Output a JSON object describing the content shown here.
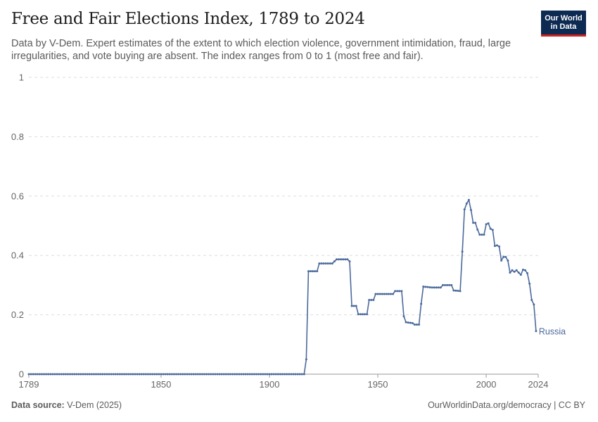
{
  "header": {
    "title": "Free and Fair Elections Index, 1789 to 2024",
    "subtitle": "Data by V-Dem. Expert estimates of the extent to which election violence, government intimidation, fraud, large irregularities, and vote buying are absent. The index ranges from 0 to 1 (most free and fair).",
    "logo_line1": "Our World",
    "logo_line2": "in Data"
  },
  "footer": {
    "source_label": "Data source:",
    "source_value": "V-Dem (2025)",
    "link_text": "OurWorldinData.org/democracy | CC BY"
  },
  "colors": {
    "series": "#4c6a9c",
    "grid": "#dddddd",
    "axis": "#999999",
    "tick_text": "#666666",
    "logo_bg": "#0d2a52",
    "logo_accent": "#ce261e"
  },
  "chart_data": {
    "type": "line",
    "xlabel": "",
    "ylabel": "",
    "xlim": [
      1789,
      2024
    ],
    "ylim": [
      0,
      1
    ],
    "x_ticks": [
      "1789",
      "1850",
      "1900",
      "1950",
      "2000",
      "2024"
    ],
    "y_ticks": [
      "0",
      "0.2",
      "0.4",
      "0.6",
      "0.8",
      "1"
    ],
    "grid": true,
    "series": [
      {
        "name": "Russia",
        "points": [
          [
            1789,
            0
          ],
          [
            1916,
            0
          ],
          [
            1917,
            0.05
          ],
          [
            1918,
            0.347
          ],
          [
            1922,
            0.347
          ],
          [
            1923,
            0.373
          ],
          [
            1929,
            0.373
          ],
          [
            1930,
            0.38
          ],
          [
            1931,
            0.387
          ],
          [
            1936,
            0.387
          ],
          [
            1937,
            0.38
          ],
          [
            1938,
            0.23
          ],
          [
            1940,
            0.23
          ],
          [
            1941,
            0.202
          ],
          [
            1945,
            0.202
          ],
          [
            1946,
            0.25
          ],
          [
            1948,
            0.25
          ],
          [
            1949,
            0.27
          ],
          [
            1957,
            0.27
          ],
          [
            1958,
            0.28
          ],
          [
            1961,
            0.28
          ],
          [
            1962,
            0.195
          ],
          [
            1963,
            0.175
          ],
          [
            1966,
            0.172
          ],
          [
            1967,
            0.167
          ],
          [
            1969,
            0.167
          ],
          [
            1970,
            0.237
          ],
          [
            1971,
            0.295
          ],
          [
            1975,
            0.292
          ],
          [
            1979,
            0.292
          ],
          [
            1980,
            0.3
          ],
          [
            1984,
            0.3
          ],
          [
            1985,
            0.282
          ],
          [
            1988,
            0.28
          ],
          [
            1989,
            0.413
          ],
          [
            1990,
            0.555
          ],
          [
            1991,
            0.575
          ],
          [
            1992,
            0.587
          ],
          [
            1993,
            0.553
          ],
          [
            1994,
            0.51
          ],
          [
            1995,
            0.51
          ],
          [
            1996,
            0.487
          ],
          [
            1997,
            0.47
          ],
          [
            1999,
            0.47
          ],
          [
            2000,
            0.505
          ],
          [
            2001,
            0.508
          ],
          [
            2002,
            0.49
          ],
          [
            2003,
            0.486
          ],
          [
            2004,
            0.432
          ],
          [
            2005,
            0.434
          ],
          [
            2006,
            0.43
          ],
          [
            2007,
            0.383
          ],
          [
            2008,
            0.395
          ],
          [
            2009,
            0.395
          ],
          [
            2010,
            0.383
          ],
          [
            2011,
            0.342
          ],
          [
            2012,
            0.35
          ],
          [
            2013,
            0.345
          ],
          [
            2014,
            0.35
          ],
          [
            2015,
            0.342
          ],
          [
            2016,
            0.335
          ],
          [
            2017,
            0.352
          ],
          [
            2018,
            0.35
          ],
          [
            2019,
            0.34
          ],
          [
            2020,
            0.305
          ],
          [
            2021,
            0.25
          ],
          [
            2022,
            0.235
          ],
          [
            2023,
            0.145
          ]
        ]
      }
    ]
  }
}
